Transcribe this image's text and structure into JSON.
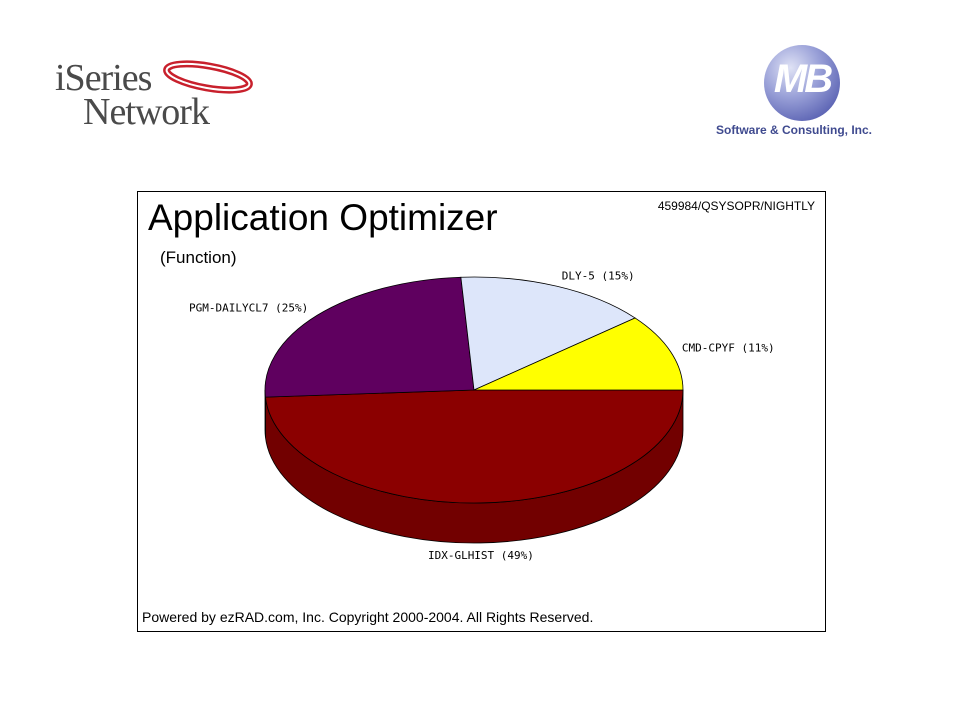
{
  "logos": {
    "left_line1": "iSeries",
    "left_line2": "Network",
    "right_mark": "MB",
    "right_tagline": "Software & Consulting, Inc."
  },
  "chart": {
    "title": "Application Optimizer",
    "subtitle": "(Function)",
    "job": "459984/QSYSOPR/NIGHTLY",
    "footer": "Powered by ezRAD.com, Inc. Copyright 2000-2004.  All Rights Reserved."
  },
  "chart_data": {
    "type": "pie",
    "style": "3d",
    "slices": [
      {
        "label": "IDX-GLHIST (49%)",
        "value": 49,
        "color": "#8b0000"
      },
      {
        "label": "PGM-DAILYCL7 (25%)",
        "value": 25,
        "color": "#5f005f"
      },
      {
        "label": "DLY-5 (15%)",
        "value": 15,
        "color": "#dde6fa"
      },
      {
        "label": "CMD-CPYF (11%)",
        "value": 11,
        "color": "#ffff00"
      }
    ]
  }
}
